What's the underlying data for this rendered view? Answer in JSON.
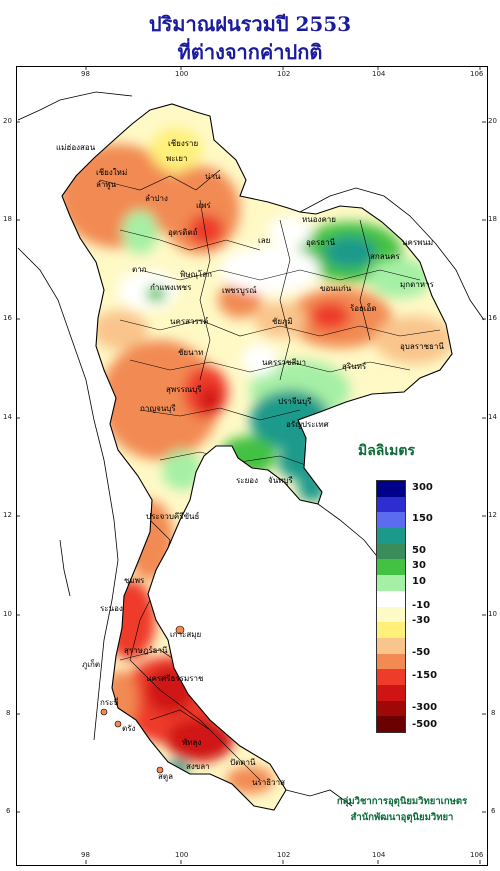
{
  "title": {
    "line1": "ปริมาณฝนรวมปี  2553",
    "line2": "ที่ต่างจากค่าปกติ"
  },
  "axes": {
    "lon_ticks": [
      "98",
      "100",
      "102",
      "104",
      "106"
    ],
    "lat_ticks": [
      "20",
      "18",
      "16",
      "14",
      "12",
      "10",
      "8",
      "6"
    ]
  },
  "legend": {
    "title": "มิลลิเมตร",
    "colors": [
      "#00008b",
      "#2d2dd0",
      "#5b6cf0",
      "#1b9a8c",
      "#3a8c5a",
      "#43c143",
      "#a5f0a5",
      "#ffffff",
      "#fffbc9",
      "#fff07a",
      "#f9c58c",
      "#f28a52",
      "#ee3b2a",
      "#d01414",
      "#a00808",
      "#6b0000"
    ],
    "labels": [
      "300",
      "150",
      "50",
      "30",
      "10",
      "-10",
      "-30",
      "-50",
      "-150",
      "-300",
      "-500"
    ]
  },
  "places": [
    {
      "name": "เชียงราย"
    },
    {
      "name": "แม่ฮ่องสอน"
    },
    {
      "name": "พะเยา"
    },
    {
      "name": "เชียงใหม่"
    },
    {
      "name": "ลำพูน"
    },
    {
      "name": "น่าน"
    },
    {
      "name": "ลำปาง"
    },
    {
      "name": "แพร่"
    },
    {
      "name": "หนองคาย"
    },
    {
      "name": "อุตรดิตถ์"
    },
    {
      "name": "อุดรธานี"
    },
    {
      "name": "สกลนคร"
    },
    {
      "name": "นครพนม"
    },
    {
      "name": "ตาก"
    },
    {
      "name": "เลย"
    },
    {
      "name": "มุกดาหาร"
    },
    {
      "name": "พิษณุโลก"
    },
    {
      "name": "ขอนแก่น"
    },
    {
      "name": "กำแพงเพชร"
    },
    {
      "name": "ร้อยเอ็ด"
    },
    {
      "name": "เพชรบูรณ์"
    },
    {
      "name": "นครสวรรค์"
    },
    {
      "name": "ชัยภูมิ"
    },
    {
      "name": "อุบลราชธานี"
    },
    {
      "name": "ชัยนาท"
    },
    {
      "name": "นครราชสีมา"
    },
    {
      "name": "สุรินทร์"
    },
    {
      "name": "กาญจนบุรี"
    },
    {
      "name": "สุพรรณบุรี"
    },
    {
      "name": "ปราจีนบุรี"
    },
    {
      "name": "อรัญประเทศ"
    },
    {
      "name": "ระยอง"
    },
    {
      "name": "จันทบุรี"
    },
    {
      "name": "ประจวบคีรีขันธ์"
    },
    {
      "name": "ชุมพร"
    },
    {
      "name": "ระนอง"
    },
    {
      "name": "เกาะสมุย"
    },
    {
      "name": "สุราษฎร์ธานี"
    },
    {
      "name": "นครศรีธรรมราช"
    },
    {
      "name": "ภูเก็ต"
    },
    {
      "name": "กระบี่"
    },
    {
      "name": "ตรัง"
    },
    {
      "name": "พัทลุง"
    },
    {
      "name": "สงขลา"
    },
    {
      "name": "ปัตตานี"
    },
    {
      "name": "นราธิวาส"
    },
    {
      "name": "สตูล"
    }
  ],
  "credit": {
    "line1": "กลุ่มวิชาการอุตุนิยมวิทยาเกษตร",
    "line2": "สำนักพัฒนาอุตุนิยมวิทยา"
  }
}
